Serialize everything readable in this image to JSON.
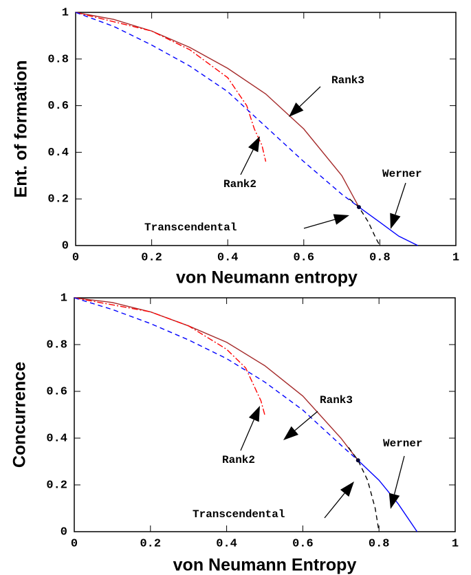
{
  "chart_data": [
    {
      "type": "line",
      "xlabel": "von Neumann entropy",
      "ylabel": "Ent. of formation",
      "xlim": [
        0,
        1
      ],
      "ylim": [
        0,
        1
      ],
      "xticks": [
        0,
        0.2,
        0.4,
        0.6,
        0.8,
        1
      ],
      "yticks": [
        0,
        0.2,
        0.4,
        0.6,
        0.8,
        1
      ],
      "series": [
        {
          "name": "Rank3",
          "color": "#a52a2a",
          "style": "solid",
          "x": [
            0,
            0.1,
            0.2,
            0.3,
            0.4,
            0.5,
            0.6,
            0.7,
            0.745
          ],
          "values": [
            1,
            0.97,
            0.92,
            0.85,
            0.76,
            0.65,
            0.5,
            0.3,
            0.165
          ]
        },
        {
          "name": "Rank2",
          "color": "#ff0000",
          "style": "dashdot",
          "x": [
            0,
            0.2,
            0.3,
            0.4,
            0.45,
            0.47,
            0.49,
            0.5
          ],
          "values": [
            1,
            0.92,
            0.84,
            0.72,
            0.6,
            0.5,
            0.43,
            0.36
          ]
        },
        {
          "name": "Werner",
          "color": "#0000ff",
          "style": "solid",
          "x": [
            0.745,
            0.8,
            0.85,
            0.9
          ],
          "values": [
            0.165,
            0.1,
            0.04,
            0
          ]
        },
        {
          "name": "Transcendental",
          "color": "#000000",
          "style": "dashed",
          "x": [
            0.72,
            0.745,
            0.77,
            0.79,
            0.8
          ],
          "values": [
            0.2,
            0.165,
            0.1,
            0.03,
            0
          ]
        },
        {
          "color": "#0000ff",
          "style": "dashed",
          "x": [
            0,
            0.1,
            0.2,
            0.3,
            0.4,
            0.5,
            0.6,
            0.7,
            0.745
          ],
          "values": [
            1,
            0.94,
            0.86,
            0.77,
            0.66,
            0.51,
            0.36,
            0.22,
            0.165
          ]
        }
      ],
      "point": {
        "x": 0.745,
        "y": 0.165
      }
    },
    {
      "type": "line",
      "xlabel": "von Neumann Entropy",
      "ylabel": "Concurrence",
      "xlim": [
        0,
        1
      ],
      "ylim": [
        0,
        1
      ],
      "xticks": [
        0,
        0.2,
        0.4,
        0.6,
        0.8,
        1
      ],
      "yticks": [
        0,
        0.2,
        0.4,
        0.6,
        0.8,
        1
      ],
      "series": [
        {
          "name": "Rank3",
          "color": "#a52a2a",
          "style": "solid",
          "x": [
            0,
            0.1,
            0.2,
            0.3,
            0.4,
            0.5,
            0.6,
            0.7,
            0.745
          ],
          "values": [
            1,
            0.98,
            0.94,
            0.88,
            0.81,
            0.71,
            0.58,
            0.4,
            0.305
          ]
        },
        {
          "name": "Rank2",
          "color": "#ff0000",
          "style": "dashdot",
          "x": [
            0,
            0.2,
            0.3,
            0.4,
            0.45,
            0.47,
            0.49,
            0.5
          ],
          "values": [
            1,
            0.94,
            0.88,
            0.78,
            0.7,
            0.63,
            0.56,
            0.5
          ]
        },
        {
          "name": "Werner",
          "color": "#0000ff",
          "style": "solid",
          "x": [
            0.745,
            0.8,
            0.85,
            0.9
          ],
          "values": [
            0.305,
            0.22,
            0.12,
            0
          ]
        },
        {
          "name": "Transcendental",
          "color": "#000000",
          "style": "dashed",
          "x": [
            0.72,
            0.745,
            0.77,
            0.79,
            0.8
          ],
          "values": [
            0.36,
            0.305,
            0.22,
            0.1,
            0
          ]
        },
        {
          "color": "#0000ff",
          "style": "dashed",
          "x": [
            0,
            0.1,
            0.2,
            0.3,
            0.4,
            0.5,
            0.6,
            0.7,
            0.745
          ],
          "values": [
            1,
            0.95,
            0.89,
            0.82,
            0.74,
            0.64,
            0.52,
            0.37,
            0.305
          ]
        }
      ],
      "point": {
        "x": 0.745,
        "y": 0.305
      }
    }
  ]
}
